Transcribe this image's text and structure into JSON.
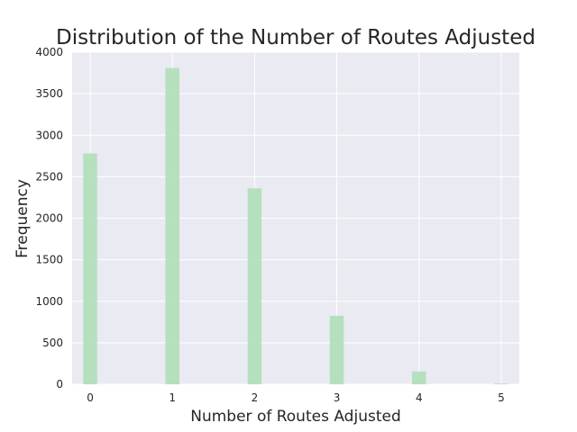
{
  "chart_data": {
    "type": "bar",
    "title": "Distribution of the Number of Routes Adjusted",
    "xlabel": "Number of Routes Adjusted",
    "ylabel": "Frequency",
    "categories": [
      0,
      1,
      2,
      3,
      4,
      5
    ],
    "values": [
      2780,
      3810,
      2360,
      825,
      155,
      8
    ],
    "xlim": [
      -0.22,
      5.22
    ],
    "ylim": [
      0,
      4000
    ],
    "xticks": [
      "0",
      "1",
      "2",
      "3",
      "4",
      "5"
    ],
    "yticks": [
      "0",
      "500",
      "1000",
      "1500",
      "2000",
      "2500",
      "3000",
      "3500",
      "4000"
    ],
    "grid": true,
    "bar_color": "#b2dfbb",
    "background_color": "#eaeaf2",
    "grid_color": "#ffffff"
  }
}
